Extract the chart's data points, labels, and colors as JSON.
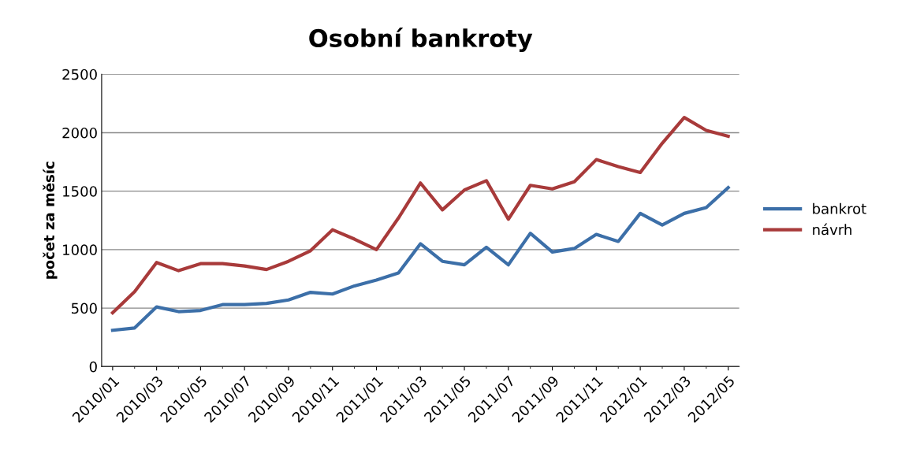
{
  "chart_data": {
    "type": "line",
    "title": "Osobní bankroty",
    "ylabel": "počet za měsíc",
    "categories": [
      "2010/01",
      null,
      "2010/03",
      null,
      "2010/05",
      null,
      "2010/07",
      null,
      "2010/09",
      null,
      "2010/11",
      null,
      "2011/01",
      null,
      "2011/03",
      null,
      "2011/05",
      null,
      "2011/07",
      null,
      "2011/09",
      null,
      "2011/11",
      null,
      "2012/01",
      null,
      "2012/03",
      null,
      "2012/05"
    ],
    "series": [
      {
        "name": "bankrot",
        "color": "#3c6fa8",
        "values": [
          310,
          330,
          510,
          470,
          480,
          530,
          530,
          540,
          570,
          635,
          620,
          690,
          740,
          800,
          1050,
          900,
          870,
          1020,
          870,
          1140,
          980,
          1010,
          1130,
          1070,
          1310,
          1210,
          1310,
          1360,
          1530
        ]
      },
      {
        "name": "návrh",
        "color": "#a83a3a",
        "values": [
          460,
          640,
          890,
          820,
          880,
          880,
          860,
          830,
          900,
          990,
          1170,
          1090,
          1000,
          1270,
          1570,
          1340,
          1510,
          1590,
          1260,
          1550,
          1520,
          1580,
          1770,
          1710,
          1660,
          1910,
          2130,
          2020,
          1970
        ]
      }
    ],
    "ylim": [
      0,
      2500
    ],
    "yticks": [
      0,
      500,
      1000,
      1500,
      2000,
      2500
    ],
    "grid": "y",
    "legend": "right",
    "marker": "none",
    "line_style": "solid"
  }
}
